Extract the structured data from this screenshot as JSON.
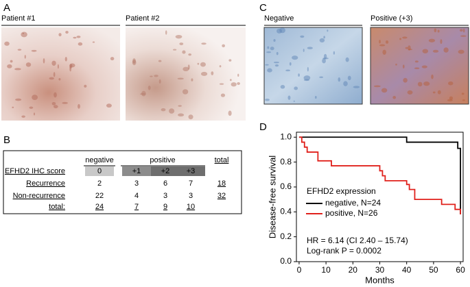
{
  "panel_a": {
    "label": "A",
    "images": [
      "Patient #1",
      "Patient #2"
    ]
  },
  "panel_c": {
    "label": "C",
    "images": [
      "Negative",
      "Positive (+3)"
    ]
  },
  "panel_b": {
    "label": "B",
    "table": {
      "headers": [
        "negative",
        "positive",
        "total"
      ],
      "score_label": "EFHD2 IHC score",
      "scores": [
        "0",
        "+1",
        "+2",
        "+3"
      ],
      "rows": [
        {
          "label": "Recurrence",
          "values": [
            2,
            3,
            6,
            7
          ],
          "total": 18
        },
        {
          "label": "Non-recurrence",
          "values": [
            22,
            4,
            3,
            3
          ],
          "total": 32
        }
      ],
      "total_row": {
        "label": "total:",
        "values": [
          24,
          7,
          9,
          10
        ]
      }
    }
  },
  "panel_d": {
    "label": "D"
  },
  "chart_data": {
    "type": "step-line",
    "y_label": "Disease-free survival",
    "x_label": "Months",
    "legend_title": "EFHD2 expression",
    "annotations": [
      "HR = 6.14 (CI 2.40 – 15.74)",
      "Log-rank P = 0.0002"
    ],
    "xlim": [
      -1,
      61
    ],
    "xticks": [
      0,
      10,
      20,
      30,
      40,
      50,
      60
    ],
    "ylim": [
      0,
      1.04
    ],
    "yticks": [
      {
        "value": 0,
        "label": "0.0"
      },
      0.2,
      0.4,
      0.6,
      0.8,
      {
        "value": 1,
        "label": "1.0"
      }
    ],
    "series": [
      {
        "name": "negative, N=24",
        "color": "#000000",
        "x": [
          0,
          40,
          59,
          60
        ],
        "values": [
          1,
          0.96,
          0.91,
          0.38
        ]
      },
      {
        "name": "positive, N=26",
        "color": "#e0201b",
        "x": [
          0,
          1,
          2,
          3,
          7,
          12,
          30,
          31,
          32,
          40,
          41,
          43,
          53,
          58,
          60
        ],
        "values": [
          1,
          0.96,
          0.92,
          0.88,
          0.81,
          0.77,
          0.73,
          0.69,
          0.65,
          0.62,
          0.58,
          0.5,
          0.46,
          0.42,
          0.38
        ]
      }
    ]
  }
}
